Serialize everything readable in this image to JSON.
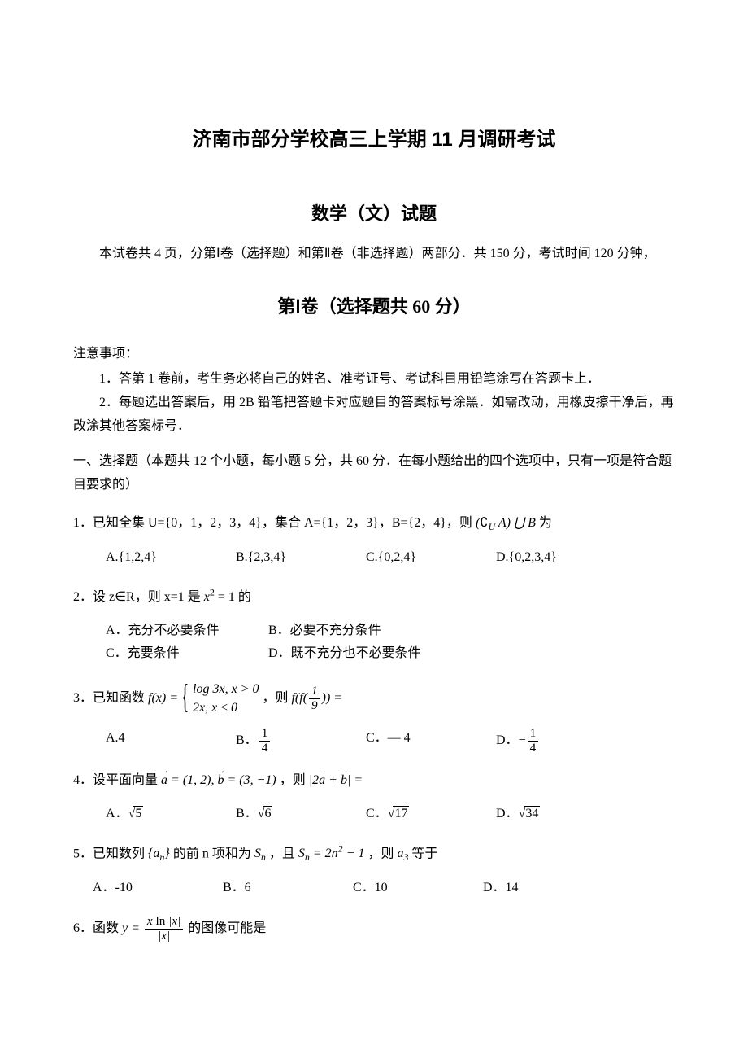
{
  "title_main": "济南市部分学校高三上学期 11 月调研考试",
  "title_sub": "数学（文）试题",
  "intro": "本试卷共 4 页，分第Ⅰ卷（选择题）和第Ⅱ卷（非选择题）两部分．共 150 分，考试时间 120 分钟，",
  "section1_title_bold": "第Ⅰ卷",
  "section1_title_rest": "（选择题共 60 分）",
  "notice_title": "注意事项：",
  "notice_1": "1．答第 1 卷前，考生务必将自己的姓名、准考证号、考试科目用铅笔涂写在答题卡上．",
  "notice_2": "2．每题选出答案后，用 2B 铅笔把答题卡对应题目的答案标号涂黑．如需改动，用橡皮擦干净后，再改涂其他答案标号．",
  "part1_desc": "一、选择题（本题共 12 个小题，每小题 5 分，共 60 分．在每小题给出的四个选项中，只有一项是符合题目要求的）",
  "q1": {
    "text_pre": "1．已知全集 U={0，1，2，3，4}，集合 A={1，2，3}，B={2，4}，则",
    "expr": "(∁U A) ⋃ B",
    "text_post": "为",
    "A": "A.{1,2,4}",
    "B": "B.{2,3,4}",
    "C": "C.{0,2,4}",
    "D": "D.{0,2,3,4}"
  },
  "q2": {
    "text": "2．设 z∈R，则 x=1 是 x² = 1 的",
    "A": "A．充分不必要条件",
    "B": "B．必要不充分条件",
    "C": "C．充要条件",
    "D": "D．既不充分也不必要条件"
  },
  "q3": {
    "text_pre": "3．已知函数 ",
    "fx": "f(x) =",
    "case1": "log 3x, x > 0",
    "case2": "2x, x ≤ 0",
    "text_mid": "，则 ",
    "ff": "f(f(",
    "ff_arg_num": "1",
    "ff_arg_den": "9",
    "ff_end": ")) =",
    "A": "A.4",
    "B_pre": "B．",
    "B_num": "1",
    "B_den": "4",
    "C": "C．— 4",
    "D_pre": "D．",
    "D_neg": "−",
    "D_num": "1",
    "D_den": "4"
  },
  "q4": {
    "text_pre": "4．设平面向量 ",
    "a_eq": "a = (1, 2), ",
    "b_eq": "b = (3, −1)",
    "text_mid": "，则 ",
    "expr_pre": "2",
    "expr_a": "a",
    "expr_plus": " + ",
    "expr_b": "b",
    "expr_eq": " =",
    "A_pre": "A．",
    "A_rad": "5",
    "B_pre": "B．",
    "B_rad": "6",
    "C_pre": "C．",
    "C_rad": "17",
    "D_pre": "D．",
    "D_rad": "34"
  },
  "q5": {
    "text_pre": "5．已知数列 ",
    "set_an": "{aₙ}",
    "text_mid1": " 的前 n 项和为 ",
    "Sn": "Sₙ",
    "text_mid2": "，且 ",
    "Sn_eq": "Sₙ = 2n² − 1",
    "text_mid3": "，则 ",
    "a3": "a₃",
    "text_post": " 等于",
    "A": "A．-10",
    "B": "B．6",
    "C": "C．10",
    "D": "D．14"
  },
  "q6": {
    "text_pre": "6．函数 ",
    "y_eq": "y =",
    "num_pre": "x ln",
    "num_abs": "x",
    "den_abs": "x",
    "text_post": " 的图像可能是"
  }
}
